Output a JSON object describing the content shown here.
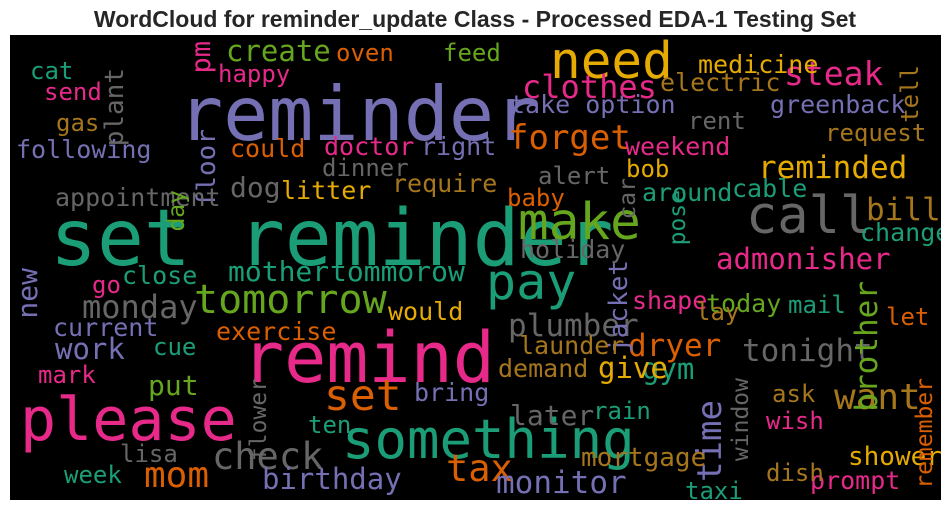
{
  "chart_data": {
    "type": "wordcloud",
    "title": "WordCloud for reminder_update Class - Processed EDA-1 Testing Set",
    "background_color": "#000000",
    "colormap": "Dark2",
    "words": [
      {
        "text": "set reminder",
        "weight": 1.0,
        "color": "#1b9e77",
        "vertical": false
      },
      {
        "text": "reminder",
        "weight": 0.96,
        "color": "#7570b3",
        "vertical": false
      },
      {
        "text": "remind",
        "weight": 0.88,
        "color": "#e7298a",
        "vertical": false
      },
      {
        "text": "please",
        "weight": 0.72,
        "color": "#e7298a",
        "vertical": false
      },
      {
        "text": "something",
        "weight": 0.62,
        "color": "#1b9e77",
        "vertical": false
      },
      {
        "text": "call",
        "weight": 0.6,
        "color": "#666666",
        "vertical": false
      },
      {
        "text": "need",
        "weight": 0.58,
        "color": "#e6ab02",
        "vertical": false
      },
      {
        "text": "make",
        "weight": 0.58,
        "color": "#66a61e",
        "vertical": false
      },
      {
        "text": "pay",
        "weight": 0.56,
        "color": "#1b9e77",
        "vertical": false
      },
      {
        "text": "set",
        "weight": 0.46,
        "color": "#d95f02",
        "vertical": false
      },
      {
        "text": "tomorrow",
        "weight": 0.4,
        "color": "#66a61e",
        "vertical": false
      },
      {
        "text": "check",
        "weight": 0.36,
        "color": "#666666",
        "vertical": false
      },
      {
        "text": "tax",
        "weight": 0.36,
        "color": "#d95f02",
        "vertical": false
      },
      {
        "text": "want",
        "weight": 0.34,
        "color": "#a6761d",
        "vertical": false
      },
      {
        "text": "mom",
        "weight": 0.34,
        "color": "#d95f02",
        "vertical": false
      },
      {
        "text": "forget",
        "weight": 0.32,
        "color": "#d95f02",
        "vertical": false
      },
      {
        "text": "time",
        "weight": 0.32,
        "color": "#7570b3",
        "vertical": true
      },
      {
        "text": "steak",
        "weight": 0.3,
        "color": "#e7298a",
        "vertical": false
      },
      {
        "text": "monday",
        "weight": 0.28,
        "color": "#666666",
        "vertical": false
      },
      {
        "text": "clothes",
        "weight": 0.28,
        "color": "#e7298a",
        "vertical": false
      },
      {
        "text": "bill",
        "weight": 0.26,
        "color": "#a6761d",
        "vertical": false
      },
      {
        "text": "tonight",
        "weight": 0.26,
        "color": "#666666",
        "vertical": false
      },
      {
        "text": "plumber",
        "weight": 0.26,
        "color": "#666666",
        "vertical": false
      },
      {
        "text": "reminded",
        "weight": 0.26,
        "color": "#e6ab02",
        "vertical": false
      },
      {
        "text": "monitor",
        "weight": 0.26,
        "color": "#7570b3",
        "vertical": false
      },
      {
        "text": "dryer",
        "weight": 0.26,
        "color": "#d95f02",
        "vertical": false
      },
      {
        "text": "brother",
        "weight": 0.26,
        "color": "#66a61e",
        "vertical": true
      },
      {
        "text": "gym",
        "weight": 0.24,
        "color": "#1b9e77",
        "vertical": false
      },
      {
        "text": "give",
        "weight": 0.24,
        "color": "#e6ab02",
        "vertical": false
      },
      {
        "text": "work",
        "weight": 0.24,
        "color": "#7570b3",
        "vertical": false
      },
      {
        "text": "admonisher",
        "weight": 0.24,
        "color": "#e7298a",
        "vertical": false
      },
      {
        "text": "birthday",
        "weight": 0.24,
        "color": "#7570b3",
        "vertical": false
      },
      {
        "text": "create",
        "weight": 0.24,
        "color": "#66a61e",
        "vertical": false
      },
      {
        "text": "mother",
        "weight": 0.22,
        "color": "#1b9e77",
        "vertical": false
      },
      {
        "text": "tommorow",
        "weight": 0.22,
        "color": "#1b9e77",
        "vertical": false
      },
      {
        "text": "put",
        "weight": 0.22,
        "color": "#66a61e",
        "vertical": false
      },
      {
        "text": "dog",
        "weight": 0.22,
        "color": "#666666",
        "vertical": false
      },
      {
        "text": "new",
        "weight": 0.22,
        "color": "#7570b3",
        "vertical": true
      },
      {
        "text": "later",
        "weight": 0.22,
        "color": "#666666",
        "vertical": false
      },
      {
        "text": "pm",
        "weight": 0.2,
        "color": "#e7298a",
        "vertical": true
      },
      {
        "text": "plant",
        "weight": 0.18,
        "color": "#666666",
        "vertical": true
      },
      {
        "text": "floor",
        "weight": 0.18,
        "color": "#7570b3",
        "vertical": true
      },
      {
        "text": "shower",
        "weight": 0.18,
        "color": "#e6ab02",
        "vertical": false
      },
      {
        "text": "mortgage",
        "weight": 0.18,
        "color": "#a6761d",
        "vertical": false
      },
      {
        "text": "jacket",
        "weight": 0.18,
        "color": "#7570b3",
        "vertical": true
      },
      {
        "text": "appointment",
        "weight": 0.17,
        "color": "#666666",
        "vertical": false
      },
      {
        "text": "medicine",
        "weight": 0.17,
        "color": "#e6ab02",
        "vertical": false
      },
      {
        "text": "electric",
        "weight": 0.17,
        "color": "#a6761d",
        "vertical": false
      },
      {
        "text": "take option",
        "weight": 0.17,
        "color": "#7570b3",
        "vertical": false
      },
      {
        "text": "greenback",
        "weight": 0.17,
        "color": "#7570b3",
        "vertical": false
      },
      {
        "text": "following",
        "weight": 0.17,
        "color": "#7570b3",
        "vertical": false
      },
      {
        "text": "doctor",
        "weight": 0.17,
        "color": "#e7298a",
        "vertical": false
      },
      {
        "text": "right",
        "weight": 0.17,
        "color": "#7570b3",
        "vertical": false
      },
      {
        "text": "weekend",
        "weight": 0.17,
        "color": "#e7298a",
        "vertical": false
      },
      {
        "text": "could",
        "weight": 0.17,
        "color": "#d95f02",
        "vertical": false
      },
      {
        "text": "litter",
        "weight": 0.17,
        "color": "#e6ab02",
        "vertical": false
      },
      {
        "text": "require",
        "weight": 0.17,
        "color": "#a6761d",
        "vertical": false
      },
      {
        "text": "around",
        "weight": 0.17,
        "color": "#1b9e77",
        "vertical": false
      },
      {
        "text": "cable",
        "weight": 0.17,
        "color": "#1b9e77",
        "vertical": false
      },
      {
        "text": "change",
        "weight": 0.17,
        "color": "#1b9e77",
        "vertical": false
      },
      {
        "text": "holiday",
        "weight": 0.17,
        "color": "#666666",
        "vertical": false
      },
      {
        "text": "shape",
        "weight": 0.17,
        "color": "#e7298a",
        "vertical": false
      },
      {
        "text": "today",
        "weight": 0.17,
        "color": "#66a61e",
        "vertical": false
      },
      {
        "text": "close",
        "weight": 0.17,
        "color": "#1b9e77",
        "vertical": false
      },
      {
        "text": "exercise",
        "weight": 0.17,
        "color": "#d95f02",
        "vertical": false
      },
      {
        "text": "would",
        "weight": 0.17,
        "color": "#e6ab02",
        "vertical": false
      },
      {
        "text": "launder",
        "weight": 0.17,
        "color": "#a6761d",
        "vertical": false
      },
      {
        "text": "demand",
        "weight": 0.17,
        "color": "#a6761d",
        "vertical": false
      },
      {
        "text": "current",
        "weight": 0.17,
        "color": "#7570b3",
        "vertical": false
      },
      {
        "text": "bring",
        "weight": 0.17,
        "color": "#7570b3",
        "vertical": false
      },
      {
        "text": "prompt",
        "weight": 0.17,
        "color": "#e7298a",
        "vertical": false
      },
      {
        "text": "dinner",
        "weight": 0.16,
        "color": "#666666",
        "vertical": false
      },
      {
        "text": "request",
        "weight": 0.16,
        "color": "#a6761d",
        "vertical": false
      },
      {
        "text": "rent",
        "weight": 0.16,
        "color": "#666666",
        "vertical": false
      },
      {
        "text": "happy",
        "weight": 0.16,
        "color": "#e7298a",
        "vertical": false
      },
      {
        "text": "oven",
        "weight": 0.16,
        "color": "#d95f02",
        "vertical": false
      },
      {
        "text": "feed",
        "weight": 0.16,
        "color": "#66a61e",
        "vertical": false
      },
      {
        "text": "cat",
        "weight": 0.16,
        "color": "#1b9e77",
        "vertical": false
      },
      {
        "text": "send",
        "weight": 0.16,
        "color": "#e7298a",
        "vertical": false
      },
      {
        "text": "gas",
        "weight": 0.16,
        "color": "#a6761d",
        "vertical": false
      },
      {
        "text": "alert",
        "weight": 0.16,
        "color": "#666666",
        "vertical": false
      },
      {
        "text": "bob",
        "weight": 0.16,
        "color": "#e6ab02",
        "vertical": false
      },
      {
        "text": "baby",
        "weight": 0.16,
        "color": "#d95f02",
        "vertical": false
      },
      {
        "text": "go",
        "weight": 0.16,
        "color": "#e7298a",
        "vertical": false
      },
      {
        "text": "mail",
        "weight": 0.16,
        "color": "#1b9e77",
        "vertical": false
      },
      {
        "text": "lay",
        "weight": 0.16,
        "color": "#a6761d",
        "vertical": false
      },
      {
        "text": "let",
        "weight": 0.16,
        "color": "#d95f02",
        "vertical": false
      },
      {
        "text": "cue",
        "weight": 0.16,
        "color": "#1b9e77",
        "vertical": false
      },
      {
        "text": "mark",
        "weight": 0.16,
        "color": "#e7298a",
        "vertical": false
      },
      {
        "text": "ask",
        "weight": 0.16,
        "color": "#a6761d",
        "vertical": false
      },
      {
        "text": "rain",
        "weight": 0.16,
        "color": "#1b9e77",
        "vertical": false
      },
      {
        "text": "wish",
        "weight": 0.16,
        "color": "#e7298a",
        "vertical": false
      },
      {
        "text": "ten",
        "weight": 0.16,
        "color": "#1b9e77",
        "vertical": false
      },
      {
        "text": "lisa",
        "weight": 0.16,
        "color": "#666666",
        "vertical": false
      },
      {
        "text": "week",
        "weight": 0.16,
        "color": "#1b9e77",
        "vertical": false
      },
      {
        "text": "dish",
        "weight": 0.16,
        "color": "#a6761d",
        "vertical": false
      },
      {
        "text": "taxi",
        "weight": 0.16,
        "color": "#1b9e77",
        "vertical": false
      },
      {
        "text": "tell",
        "weight": 0.16,
        "color": "#a6761d",
        "vertical": true
      },
      {
        "text": "car",
        "weight": 0.14,
        "color": "#666666",
        "vertical": true
      },
      {
        "text": "pose",
        "weight": 0.14,
        "color": "#1b9e77",
        "vertical": true
      },
      {
        "text": "day",
        "weight": 0.14,
        "color": "#66a61e",
        "vertical": true
      },
      {
        "text": "flower",
        "weight": 0.14,
        "color": "#666666",
        "vertical": true
      },
      {
        "text": "window",
        "weight": 0.14,
        "color": "#666666",
        "vertical": true
      },
      {
        "text": "remember",
        "weight": 0.14,
        "color": "#d95f02",
        "vertical": true
      }
    ]
  }
}
